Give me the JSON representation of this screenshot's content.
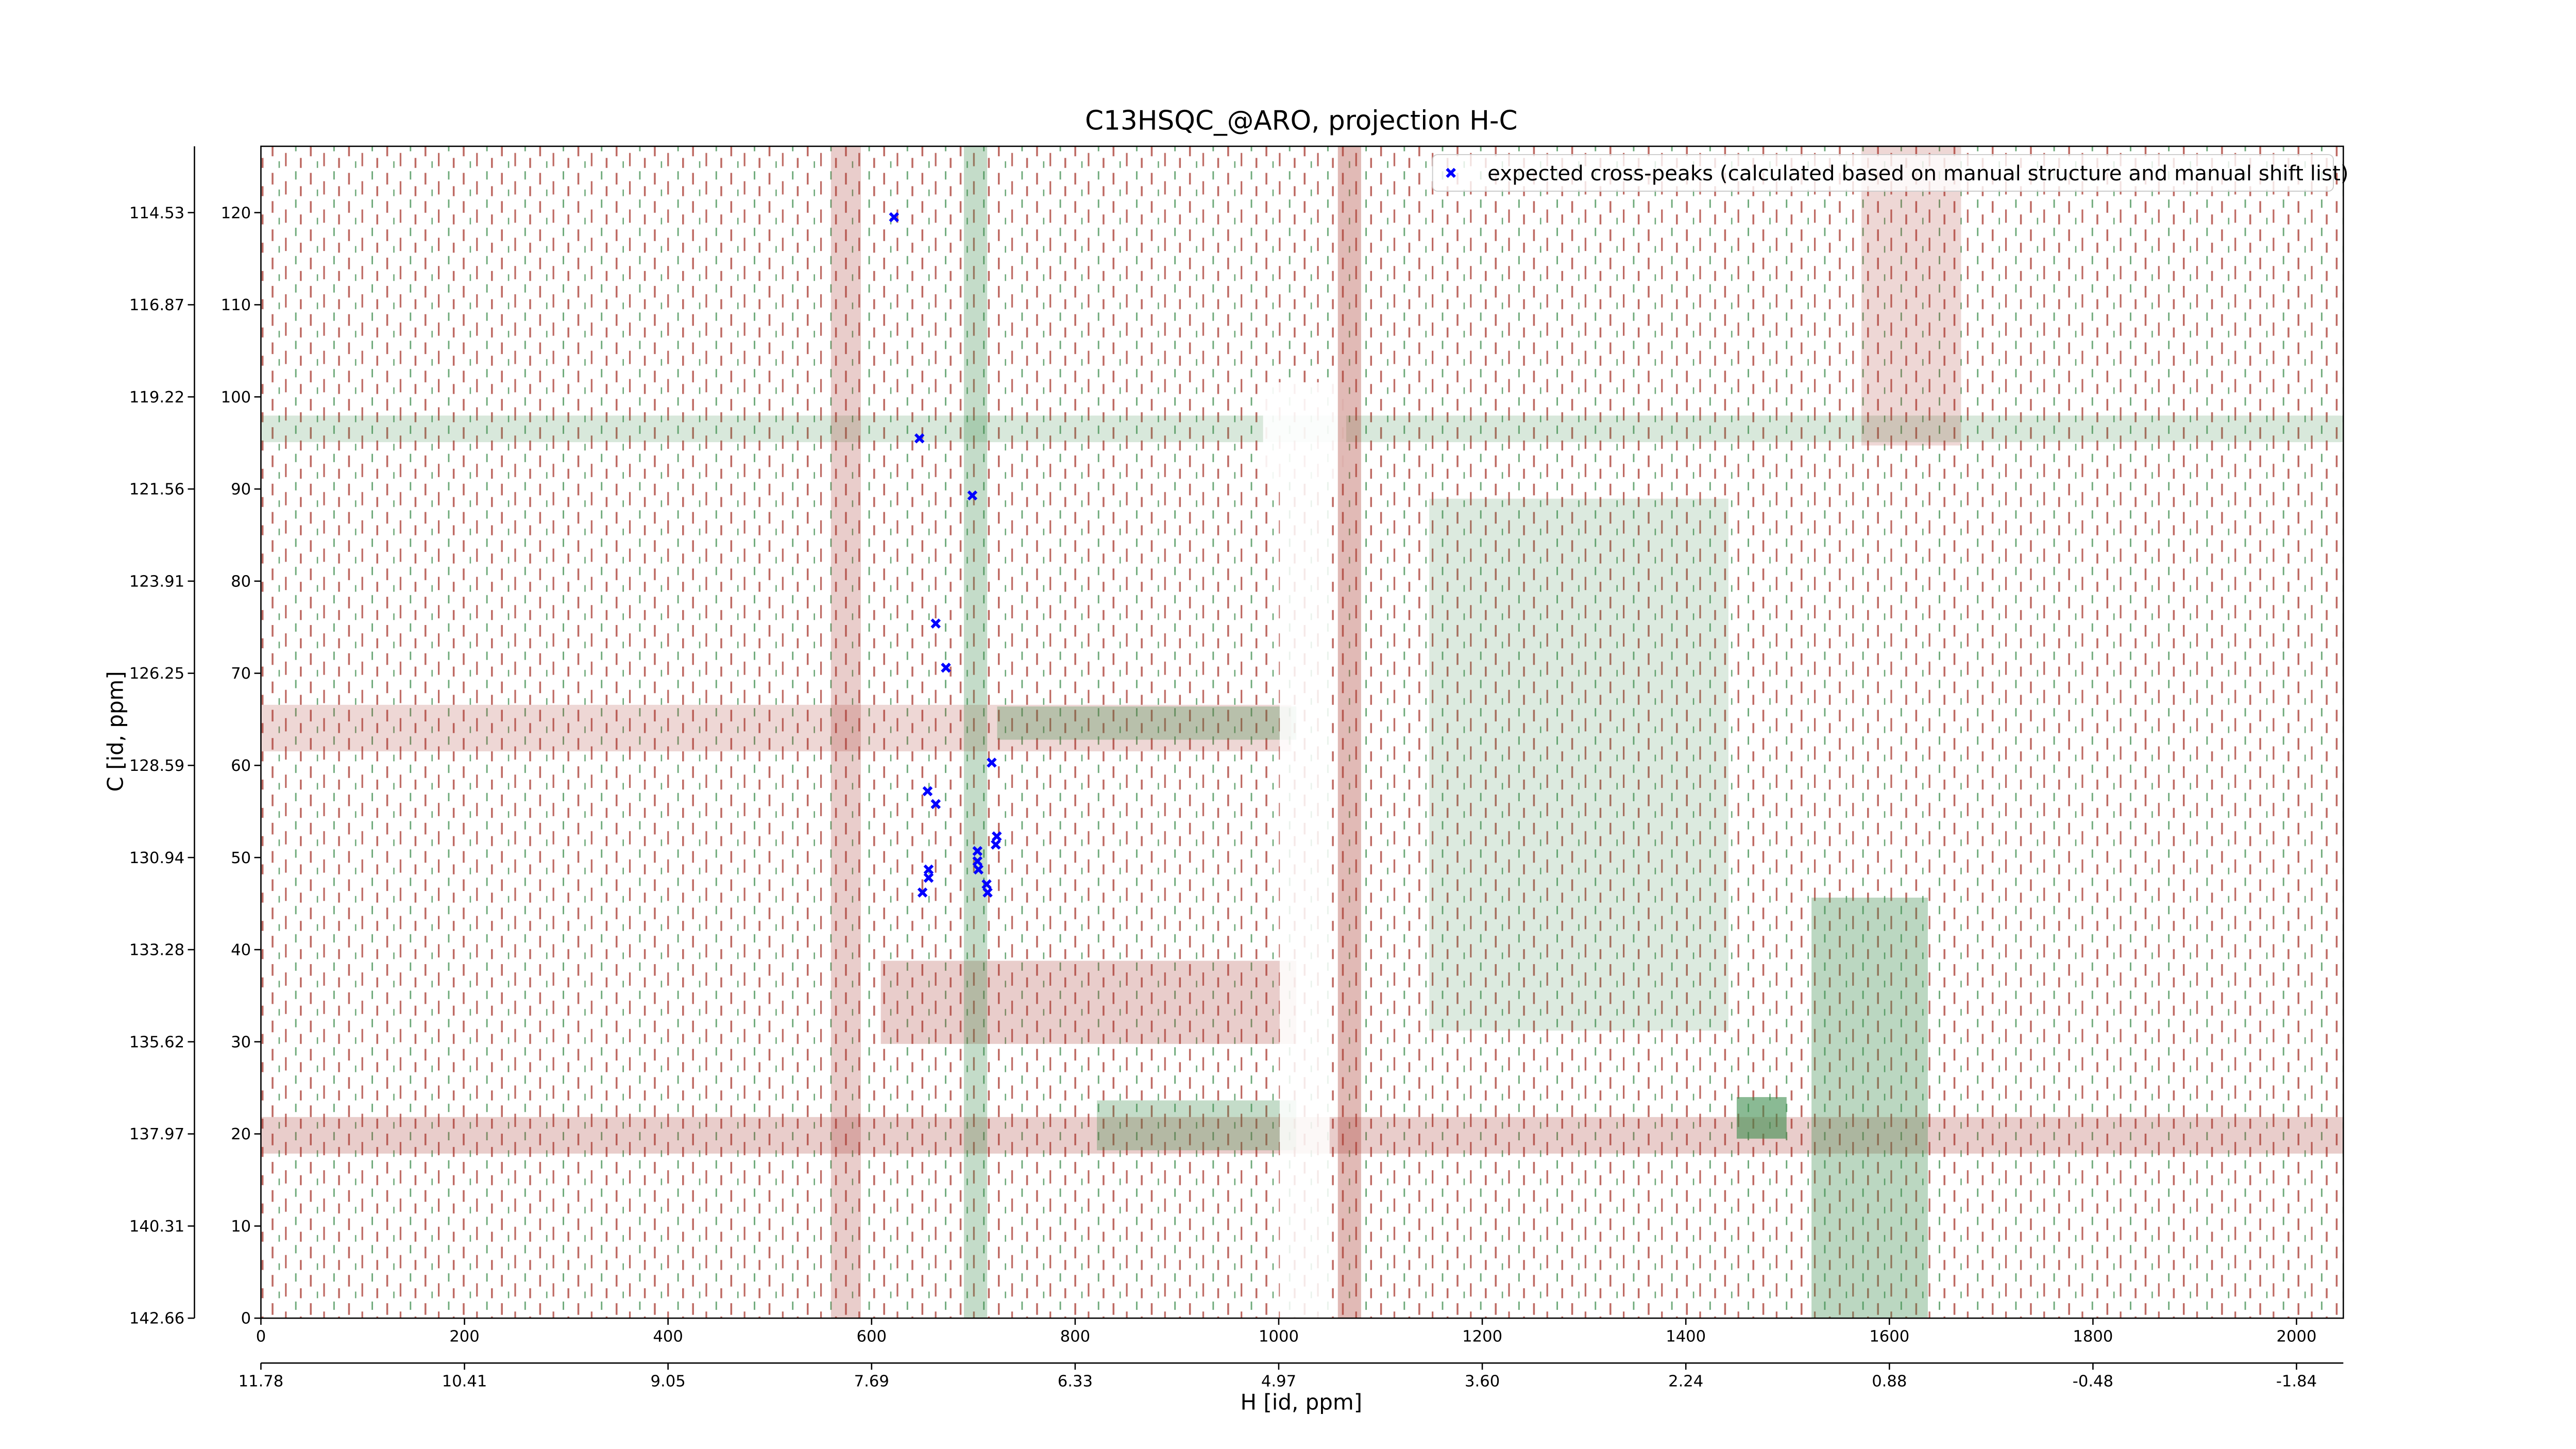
{
  "chart_data": {
    "type": "scatter",
    "title": "C13HSQC_@ARO, projection H-C",
    "xlabel": "H [id, ppm]",
    "ylabel": "C [id, ppm]",
    "legend": "upper right",
    "series": [
      {
        "name": "expected cross-peaks (calculated based on manual structure and manual shift list)",
        "color": "#0000ff",
        "x": [
          622,
          647,
          699,
          663,
          673,
          718,
          655,
          663,
          723,
          722,
          704,
          704,
          656,
          656,
          705,
          650,
          713,
          714
        ],
        "values": [
          119.5,
          95.5,
          89.3,
          75.4,
          70.6,
          60.3,
          57.2,
          55.8,
          52.3,
          51.4,
          50.7,
          49.6,
          48.7,
          47.8,
          48.7,
          46.2,
          47.1,
          46.2
        ]
      }
    ],
    "xlim": [
      0,
      2046
    ],
    "ylim": [
      0,
      127.2
    ],
    "xticks": [
      0,
      200,
      400,
      600,
      800,
      1000,
      1200,
      1400,
      1600,
      1800,
      2000
    ],
    "yticks": [
      0,
      10,
      20,
      30,
      40,
      50,
      60,
      70,
      80,
      90,
      100,
      110,
      120
    ],
    "x2ticks": [
      {
        "value": 0,
        "label": "11.78"
      },
      {
        "value": 200,
        "label": "10.41"
      },
      {
        "value": 400,
        "label": "9.05"
      },
      {
        "value": 600,
        "label": "7.69"
      },
      {
        "value": 800,
        "label": "6.33"
      },
      {
        "value": 1000,
        "label": "4.97"
      },
      {
        "value": 1200,
        "label": "3.60"
      },
      {
        "value": 1400,
        "label": "2.24"
      },
      {
        "value": 1600,
        "label": "0.88"
      },
      {
        "value": 1800,
        "label": "-0.48"
      },
      {
        "value": 2000,
        "label": "-1.84"
      }
    ],
    "y2ticks": [
      {
        "value": 0,
        "label": "142.66"
      },
      {
        "value": 10,
        "label": "140.31"
      },
      {
        "value": 20,
        "label": "137.97"
      },
      {
        "value": 30,
        "label": "135.62"
      },
      {
        "value": 40,
        "label": "133.28"
      },
      {
        "value": 50,
        "label": "130.94"
      },
      {
        "value": 60,
        "label": "128.59"
      },
      {
        "value": 70,
        "label": "126.25"
      },
      {
        "value": 80,
        "label": "123.91"
      },
      {
        "value": 90,
        "label": "121.56"
      },
      {
        "value": 100,
        "label": "119.22"
      },
      {
        "value": 110,
        "label": "116.87"
      },
      {
        "value": 120,
        "label": "114.53"
      }
    ]
  }
}
